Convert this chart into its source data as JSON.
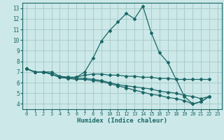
{
  "xlabel": "Humidex (Indice chaleur)",
  "background_color": "#cce8e8",
  "grid_color": "#aacccc",
  "line_color": "#1a6666",
  "xlim": [
    -0.5,
    23.5
  ],
  "ylim": [
    3.5,
    13.5
  ],
  "xticks": [
    0,
    1,
    2,
    3,
    4,
    5,
    6,
    7,
    8,
    9,
    10,
    11,
    12,
    13,
    14,
    15,
    16,
    17,
    18,
    19,
    20,
    21,
    22,
    23
  ],
  "yticks": [
    4,
    5,
    6,
    7,
    8,
    9,
    10,
    11,
    12,
    13
  ],
  "series": [
    {
      "x": [
        0,
        1,
        2,
        3,
        4,
        5,
        6,
        7,
        8,
        9,
        10,
        11,
        12,
        13,
        14,
        15,
        16,
        17,
        18,
        19,
        20,
        21,
        22
      ],
      "y": [
        7.3,
        7.0,
        7.0,
        7.0,
        6.6,
        6.5,
        6.5,
        7.0,
        8.3,
        9.9,
        10.9,
        11.7,
        12.5,
        12.0,
        13.2,
        10.7,
        8.8,
        7.9,
        6.3,
        4.7,
        4.0,
        4.2,
        4.7
      ]
    },
    {
      "x": [
        0,
        1,
        2,
        3,
        4,
        5,
        6,
        7,
        8,
        9,
        10,
        11,
        12,
        13,
        14,
        15,
        16,
        17,
        18,
        19,
        20,
        21,
        22
      ],
      "y": [
        7.3,
        7.0,
        7.0,
        6.8,
        6.5,
        6.5,
        6.5,
        6.7,
        6.8,
        6.8,
        6.7,
        6.7,
        6.6,
        6.6,
        6.5,
        6.5,
        6.4,
        6.4,
        6.3,
        6.3,
        6.3,
        6.3,
        6.3
      ]
    },
    {
      "x": [
        0,
        1,
        2,
        3,
        4,
        5,
        6,
        7,
        8,
        9,
        10,
        11,
        12,
        13,
        14,
        15,
        16,
        17,
        18,
        19,
        20,
        21,
        22
      ],
      "y": [
        7.3,
        7.0,
        7.0,
        6.8,
        6.5,
        6.4,
        6.4,
        6.4,
        6.3,
        6.2,
        6.0,
        5.8,
        5.7,
        5.6,
        5.5,
        5.4,
        5.2,
        5.1,
        5.0,
        4.8,
        4.7,
        4.5,
        4.7
      ]
    },
    {
      "x": [
        0,
        1,
        2,
        3,
        4,
        5,
        6,
        7,
        8,
        9,
        10,
        11,
        12,
        13,
        14,
        15,
        16,
        17,
        18,
        19,
        20,
        21,
        22
      ],
      "y": [
        7.3,
        7.0,
        7.0,
        6.8,
        6.5,
        6.4,
        6.3,
        6.3,
        6.2,
        6.1,
        5.9,
        5.7,
        5.5,
        5.3,
        5.1,
        4.9,
        4.8,
        4.6,
        4.5,
        4.3,
        4.0,
        4.2,
        4.7
      ]
    }
  ]
}
